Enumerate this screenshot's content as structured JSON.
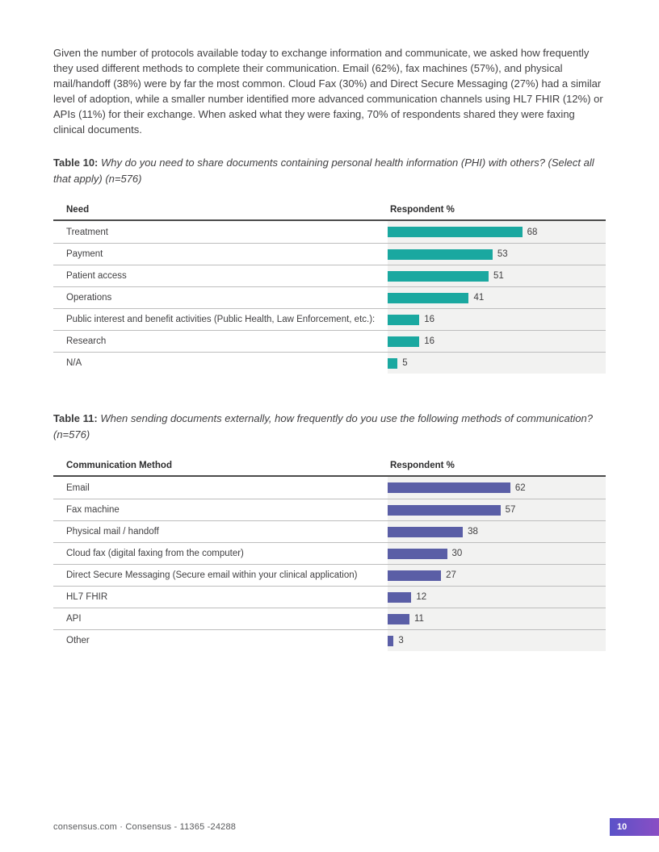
{
  "intro": "Given the number of protocols available today to exchange information and communicate, we asked how frequently they used different methods to complete their communication. Email (62%), fax machines (57%), and physical mail/handoff (38%) were by far the most common. Cloud Fax (30%) and Direct Secure Messaging (27%) had a similar level of adoption, while a smaller number identified more advanced communication channels using HL7 FHIR (12%) or APIs (11%) for their exchange. When asked what they were faxing, 70% of respondents shared they were faxing clinical documents.",
  "tables": [
    {
      "caption_label": "Table 10:",
      "caption_text": "Why do you need to share documents containing personal health information (PHI) with others? (Select all that apply) (n=576)",
      "col1_header": "Need",
      "col2_header": "Respondent %",
      "bar_color": "#1aa8a0",
      "rows": [
        {
          "label": "Treatment",
          "value": 68
        },
        {
          "label": "Payment",
          "value": 53
        },
        {
          "label": "Patient access",
          "value": 51
        },
        {
          "label": "Operations",
          "value": 41
        },
        {
          "label": "Public interest and benefit activities (Public Health, Law Enforcement, etc.):",
          "value": 16
        },
        {
          "label": "Research",
          "value": 16
        },
        {
          "label": "N/A",
          "value": 5
        }
      ]
    },
    {
      "caption_label": "Table 11:",
      "caption_text": "When sending documents externally, how frequently do you use the following methods of communication? (n=576)",
      "col1_header": "Communication Method",
      "col2_header": "Respondent %",
      "bar_color": "#5a5ea6",
      "rows": [
        {
          "label": "Email",
          "value": 62
        },
        {
          "label": "Fax machine",
          "value": 57
        },
        {
          "label": "Physical mail / handoff",
          "value": 38
        },
        {
          "label": "Cloud fax (digital faxing from the computer)",
          "value": 30
        },
        {
          "label": "Direct Secure Messaging (Secure email within your clinical application)",
          "value": 27
        },
        {
          "label": "HL7 FHIR",
          "value": 12
        },
        {
          "label": "API",
          "value": 11
        },
        {
          "label": "Other",
          "value": 3
        }
      ]
    }
  ],
  "chart_data": [
    {
      "type": "bar",
      "orientation": "horizontal",
      "title": "Table 10: Why do you need to share documents containing personal health information (PHI) with others? (Select all that apply) (n=576)",
      "categories": [
        "Treatment",
        "Payment",
        "Patient access",
        "Operations",
        "Public interest and benefit activities (Public Health, Law Enforcement, etc.):",
        "Research",
        "N/A"
      ],
      "values": [
        68,
        53,
        51,
        41,
        16,
        16,
        5
      ],
      "xlabel": "Need",
      "ylabel": "Respondent %",
      "bar_color": "#1aa8a0",
      "grid": false,
      "data_labels": true
    },
    {
      "type": "bar",
      "orientation": "horizontal",
      "title": "Table 11: When sending documents externally, how frequently do you use the following methods of communication? (n=576)",
      "categories": [
        "Email",
        "Fax machine",
        "Physical mail / handoff",
        "Cloud fax (digital faxing from the computer)",
        "Direct Secure Messaging (Secure email within your clinical application)",
        "HL7 FHIR",
        "API",
        "Other"
      ],
      "values": [
        62,
        57,
        38,
        30,
        27,
        12,
        11,
        3
      ],
      "xlabel": "Communication Method",
      "ylabel": "Respondent %",
      "bar_color": "#5a5ea6",
      "grid": false,
      "data_labels": true
    }
  ],
  "footer": {
    "text": "consensus.com · Consensus - 11365 -24288",
    "page_number": "10",
    "badge_gradient_left": "#5a52c8",
    "badge_gradient_right": "#8a4ec4"
  }
}
